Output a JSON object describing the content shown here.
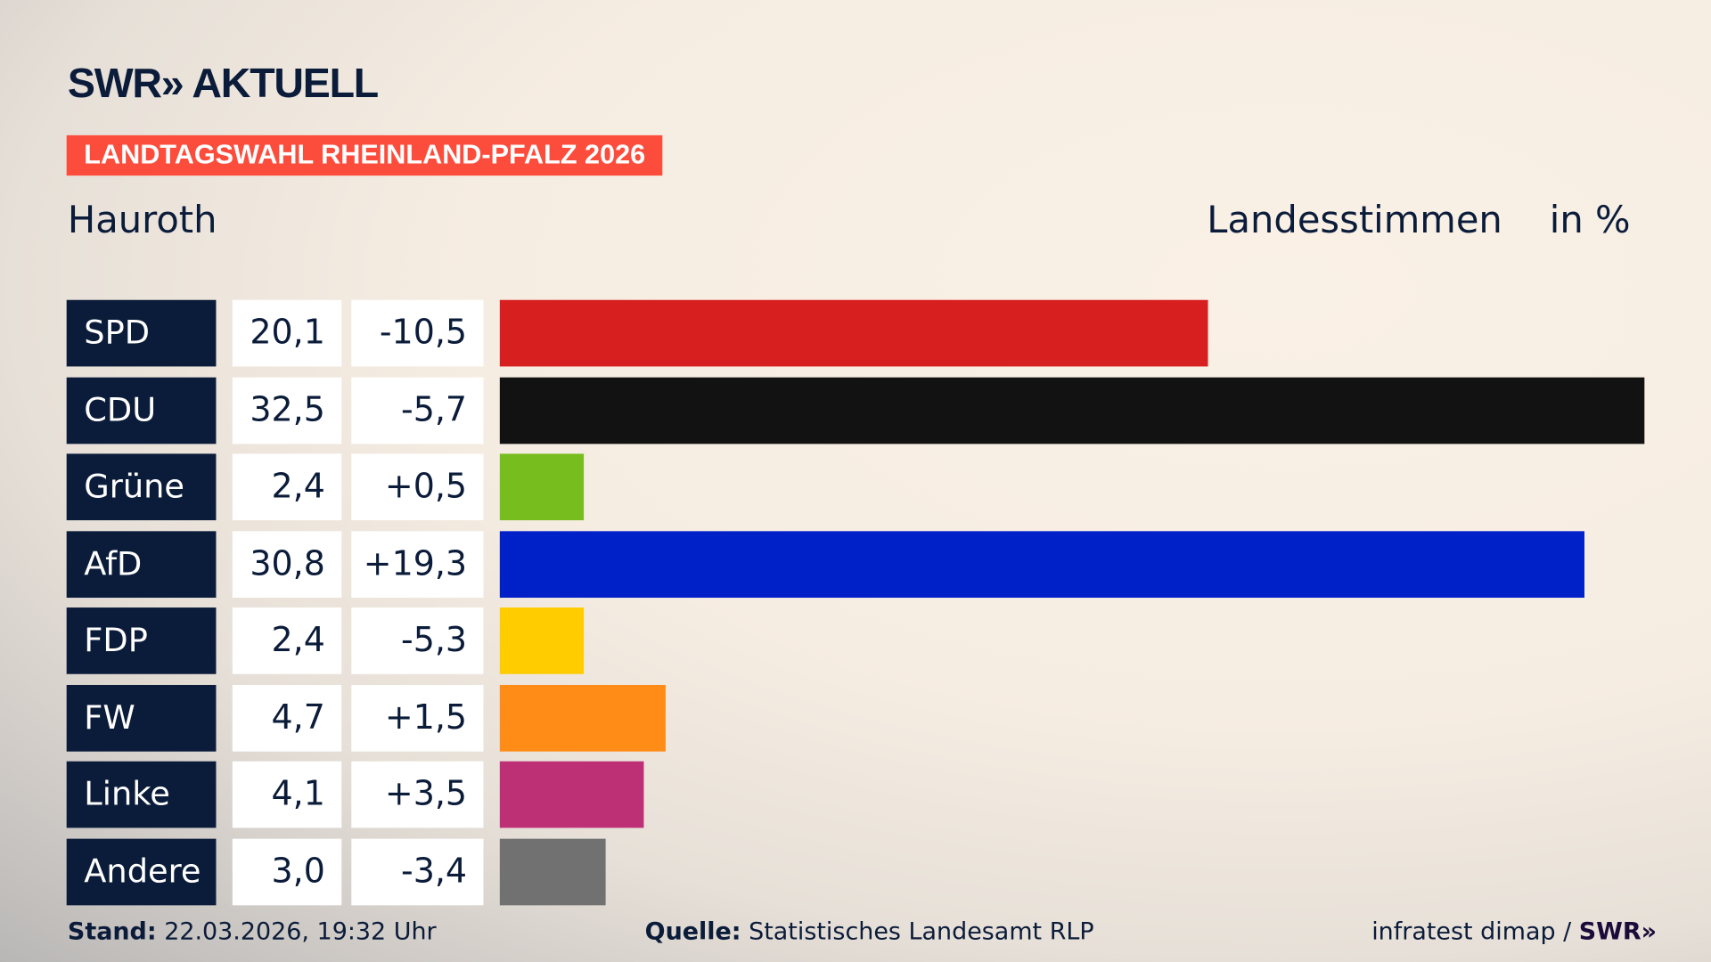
{
  "logo": "SWR» AKTUELL",
  "badge": "LANDTAGSWAHL RHEINLAND-PFALZ 2026",
  "place": "Hauroth",
  "header_type": "Landesstimmen",
  "header_unit": "in %",
  "chart_data": {
    "type": "bar",
    "orientation": "horizontal",
    "categories": [
      "SPD",
      "CDU",
      "Grüne",
      "AfD",
      "FDP",
      "FW",
      "Linke",
      "Andere"
    ],
    "values": [
      "20,1",
      "32,5",
      "2,4",
      "30,8",
      "2,4",
      "4,7",
      "4,1",
      "3,0"
    ],
    "numeric_values": [
      20.1,
      32.5,
      2.4,
      30.8,
      2.4,
      4.7,
      4.1,
      3.0
    ],
    "changes": [
      "-10,5",
      "-5,7",
      "+0,5",
      "+19,3",
      "-5,3",
      "+1,5",
      "+3,5",
      "-3,4"
    ],
    "colors": [
      "#d81f1f",
      "#121212",
      "#77bd1e",
      "#0021c8",
      "#ffcc00",
      "#ff8c17",
      "#bd3075",
      "#717171"
    ],
    "xlim": [
      0,
      32.5
    ]
  },
  "footer": {
    "stand_label": "Stand:",
    "stand_value": "22.03.2026, 19:32 Uhr",
    "source_label": "Quelle:",
    "source_value": "Statistisches Landesamt RLP",
    "credit": "infratest dimap /",
    "credit_logo": "SWR»"
  }
}
